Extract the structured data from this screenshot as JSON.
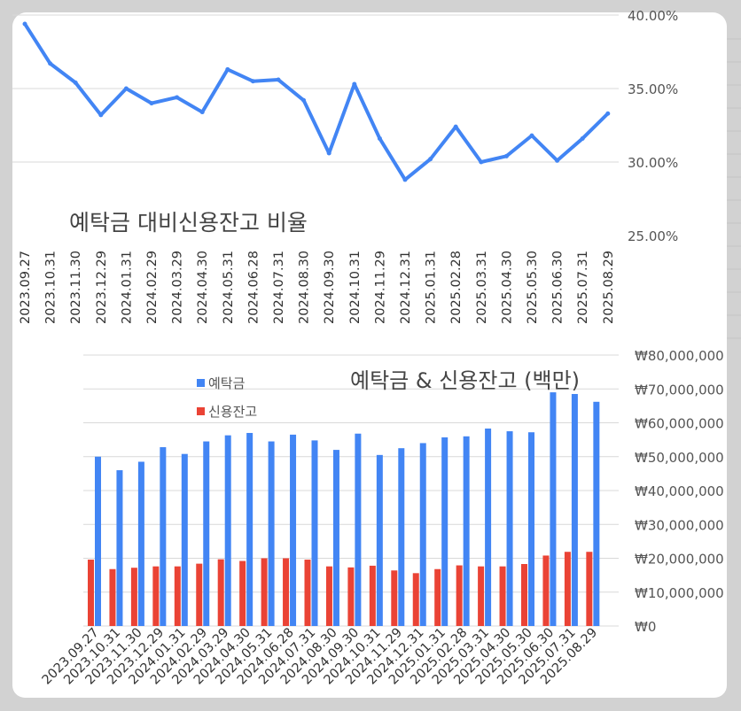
{
  "colors": {
    "deposit": "#4285f4",
    "credit": "#ea4335",
    "line": "#4285f4",
    "grid": "#d9d9d9",
    "text": "#555555"
  },
  "chart_data": [
    {
      "type": "line",
      "title": "예탁금 대비신용잔고 비율",
      "xlabel": "",
      "ylabel": "",
      "ylim": [
        0.25,
        0.4
      ],
      "yticks": [
        "40.00%",
        "35.00%",
        "30.00%",
        "25.00%"
      ],
      "grid": true,
      "legend": "none",
      "categories": [
        "2023.09.27",
        "2023.10.31",
        "2023.11.30",
        "2023.12.29",
        "2024.01.31",
        "2024.02.29",
        "2024.03.29",
        "2024.04.30",
        "2024.05.31",
        "2024.06.28",
        "2024.07.31",
        "2024.08.30",
        "2024.09.30",
        "2024.10.31",
        "2024.11.29",
        "2024.12.31",
        "2025.01.31",
        "2025.02.28",
        "2025.03.31",
        "2025.04.30",
        "2025.05.30",
        "2025.06.30",
        "2025.07.31",
        "2025.08.29"
      ],
      "series": [
        {
          "values": [
            0.394,
            0.367,
            0.354,
            0.332,
            0.35,
            0.34,
            0.344,
            0.334,
            0.363,
            0.355,
            0.356,
            0.342,
            0.306,
            0.353,
            0.316,
            0.288,
            0.302,
            0.324,
            0.3,
            0.304,
            0.318,
            0.301,
            0.316,
            0.333
          ]
        }
      ]
    },
    {
      "type": "bar",
      "title": "예탁금 & 신용잔고 (백만)",
      "xlabel": "",
      "ylabel": "",
      "ylim": [
        0,
        80000000
      ],
      "yticks": [
        "₩80,000,000",
        "₩70,000,000",
        "₩60,000,000",
        "₩50,000,000",
        "₩40,000,000",
        "₩30,000,000",
        "₩20,000,000",
        "₩10,000,000",
        "₩0"
      ],
      "grid": true,
      "legend": "top-left",
      "categories": [
        "2023.09.27",
        "2023.10.31",
        "2023.11.30",
        "2023.12.29",
        "2024.01.31",
        "2024.02.29",
        "2024.03.29",
        "2024.04.30",
        "2024.05.31",
        "2024.06.28",
        "2024.07.31",
        "2024.08.30",
        "2024.09.30",
        "2024.10.31",
        "2024.11.29",
        "2024.12.31",
        "2025.01.31",
        "2025.02.28",
        "2025.03.31",
        "2025.04.30",
        "2025.05.30",
        "2025.06.30",
        "2025.07.31",
        "2025.08.29"
      ],
      "series": [
        {
          "name": "예탁금",
          "values": [
            50000000,
            46000000,
            48500000,
            52800000,
            50800000,
            54500000,
            56300000,
            57000000,
            54500000,
            56500000,
            54800000,
            52000000,
            56800000,
            50500000,
            52500000,
            54000000,
            55700000,
            56000000,
            58300000,
            57500000,
            57200000,
            69000000,
            68500000,
            66200000
          ]
        },
        {
          "name": "신용잔고",
          "values": [
            19600000,
            16800000,
            17200000,
            17600000,
            17600000,
            18400000,
            19700000,
            19200000,
            20000000,
            20000000,
            19600000,
            17600000,
            17300000,
            17800000,
            16400000,
            15600000,
            16800000,
            17900000,
            17600000,
            17600000,
            18300000,
            20800000,
            21900000,
            21900000
          ]
        }
      ]
    }
  ]
}
